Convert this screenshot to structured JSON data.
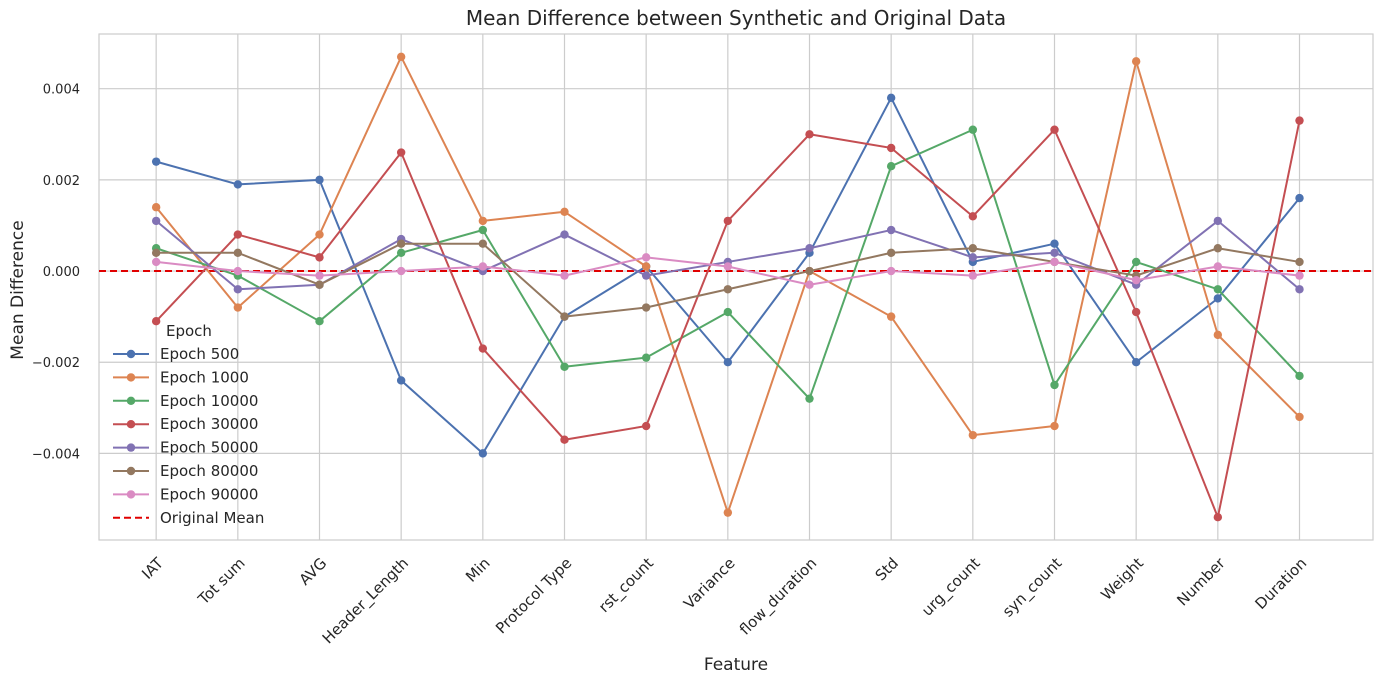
{
  "chart_data": {
    "type": "line",
    "title": "Mean Difference between Synthetic and Original Data",
    "xlabel": "Feature",
    "ylabel": "Mean Difference",
    "categories": [
      "IAT",
      "Tot sum",
      "AVG",
      "Header_Length",
      "Min",
      "Protocol Type",
      "rst_count",
      "Variance",
      "flow_duration",
      "Std",
      "urg_count",
      "syn_count",
      "Weight",
      "Number",
      "Duration"
    ],
    "ylim": [
      -0.0059,
      0.0052
    ],
    "yticks": [
      -0.004,
      -0.002,
      0.0,
      0.002,
      0.004
    ],
    "ytick_labels": [
      "−0.004",
      "−0.002",
      "0.000",
      "0.002",
      "0.004"
    ],
    "grid": true,
    "legend_title": "Epoch",
    "legend_position": "lower-left",
    "series": [
      {
        "name": "Epoch 500",
        "color": "#4c72b0",
        "values": [
          0.0024,
          0.0019,
          0.002,
          -0.0024,
          -0.004,
          -0.001,
          0.0001,
          -0.002,
          0.0004,
          0.0038,
          0.0002,
          0.0006,
          -0.002,
          -0.0006,
          0.0016
        ]
      },
      {
        "name": "Epoch 1000",
        "color": "#dd8452",
        "values": [
          0.0014,
          -0.0008,
          0.0008,
          0.0047,
          0.0011,
          0.0013,
          0.0001,
          -0.0053,
          0.0,
          -0.001,
          -0.0036,
          -0.0034,
          0.0046,
          -0.0014,
          -0.0032
        ]
      },
      {
        "name": "Epoch 10000",
        "color": "#55a868",
        "values": [
          0.0005,
          -0.0001,
          -0.0011,
          0.0004,
          0.0009,
          -0.0021,
          -0.0019,
          -0.0009,
          -0.0028,
          0.0023,
          0.0031,
          -0.0025,
          0.0002,
          -0.0004,
          -0.0023
        ]
      },
      {
        "name": "Epoch 30000",
        "color": "#c44e52",
        "values": [
          -0.0011,
          0.0008,
          0.0003,
          0.0026,
          -0.0017,
          -0.0037,
          -0.0034,
          0.0011,
          0.003,
          0.0027,
          0.0012,
          0.0031,
          -0.0009,
          -0.0054,
          0.0033
        ]
      },
      {
        "name": "Epoch 50000",
        "color": "#8172b3",
        "values": [
          0.0011,
          -0.0004,
          -0.0003,
          0.0007,
          0.0,
          0.0008,
          -0.0001,
          0.0002,
          0.0005,
          0.0009,
          0.0003,
          0.0004,
          -0.0003,
          0.0011,
          -0.0004
        ]
      },
      {
        "name": "Epoch 80000",
        "color": "#937860",
        "values": [
          0.0004,
          0.0004,
          -0.0003,
          0.0006,
          0.0006,
          -0.001,
          -0.0008,
          -0.0004,
          0.0,
          0.0004,
          0.0005,
          0.0002,
          -0.0001,
          0.0005,
          0.0002
        ]
      },
      {
        "name": "Epoch 90000",
        "color": "#da8bc3",
        "values": [
          0.0002,
          0.0,
          -0.0001,
          0.0,
          0.0001,
          -0.0001,
          0.0003,
          0.0001,
          -0.0003,
          0.0,
          -0.0001,
          0.0002,
          -0.0002,
          0.0001,
          -0.0001
        ]
      }
    ],
    "reference_line": {
      "name": "Original Mean",
      "value": 0.0,
      "color": "#e00000",
      "style": "dashed"
    }
  }
}
